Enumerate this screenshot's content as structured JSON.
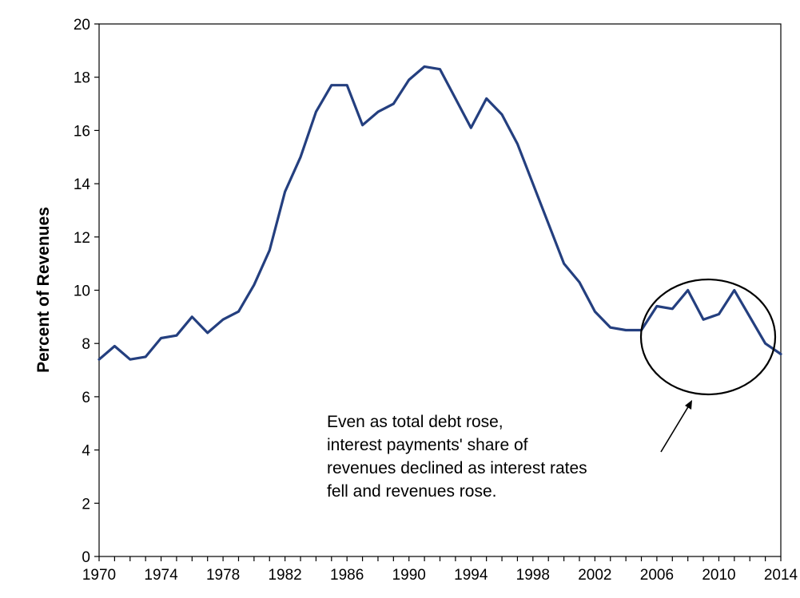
{
  "chart_data": {
    "type": "line",
    "title": "",
    "xlabel": "",
    "ylabel": "Percent of Revenues",
    "xlim": [
      1970,
      2014
    ],
    "ylim": [
      0,
      20
    ],
    "x_ticks": [
      "1970",
      "1974",
      "1978",
      "1982",
      "1986",
      "1990",
      "1994",
      "1998",
      "2002",
      "2006",
      "2010",
      "2014"
    ],
    "y_ticks": [
      "0",
      "2",
      "4",
      "6",
      "8",
      "10",
      "12",
      "14",
      "16",
      "18",
      "20"
    ],
    "grid": false,
    "legend": "none",
    "series": [
      {
        "color": "#243F7F",
        "x": [
          1970,
          1971,
          1972,
          1973,
          1974,
          1975,
          1976,
          1977,
          1978,
          1979,
          1980,
          1981,
          1982,
          1983,
          1984,
          1985,
          1986,
          1987,
          1988,
          1989,
          1990,
          1991,
          1992,
          1993,
          1994,
          1995,
          1996,
          1997,
          1998,
          1999,
          2000,
          2001,
          2002,
          2003,
          2004,
          2005,
          2006,
          2007,
          2008,
          2009,
          2010,
          2011,
          2012,
          2013,
          2014
        ],
        "values": [
          7.4,
          7.9,
          7.4,
          7.5,
          8.2,
          8.3,
          9.0,
          8.4,
          8.9,
          9.2,
          10.2,
          11.5,
          13.7,
          15.0,
          16.7,
          17.7,
          17.7,
          16.2,
          16.7,
          17.0,
          17.9,
          18.4,
          18.3,
          17.2,
          16.1,
          17.2,
          16.6,
          15.5,
          14.0,
          12.5,
          11.0,
          10.3,
          9.2,
          8.6,
          8.5,
          8.5,
          9.4,
          9.3,
          10.0,
          8.9,
          9.1,
          10.0,
          9.0,
          8.0,
          7.6
        ]
      }
    ],
    "annotation": {
      "lines": [
        "Even as total debt rose,",
        "interest payments' share of",
        "revenues declined as interest rates",
        "fell and revenues rose."
      ]
    }
  }
}
